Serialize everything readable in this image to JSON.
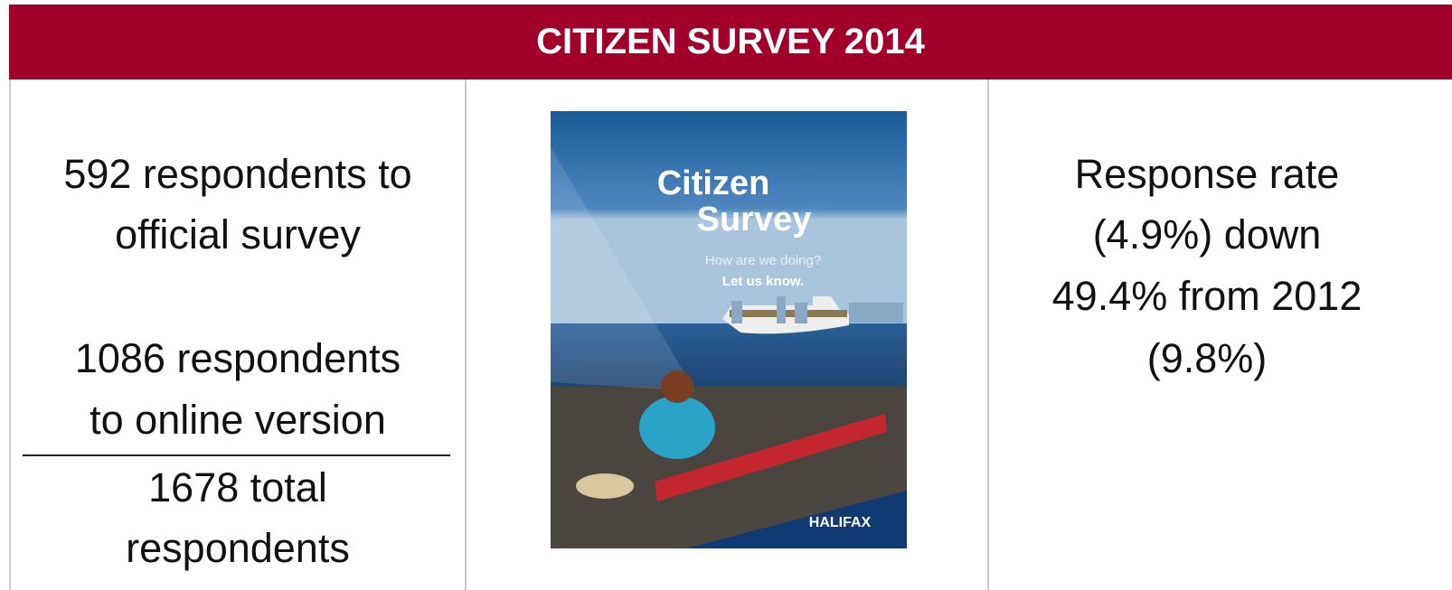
{
  "header": {
    "title": "CITIZEN SURVEY 2014"
  },
  "left": {
    "official": [
      "592 respondents to",
      "official survey"
    ],
    "online": [
      "1086 respondents",
      "to online version"
    ],
    "total": [
      "1678 total",
      "respondents"
    ]
  },
  "poster": {
    "title": [
      "Citizen",
      "Survey"
    ],
    "tagline": "How are we doing?",
    "call": "Let us know.",
    "logo": "HALIFAX"
  },
  "right": {
    "lines": [
      "Response rate",
      "(4.9%) down",
      "49.4% from 2012",
      "(9.8%)"
    ]
  }
}
